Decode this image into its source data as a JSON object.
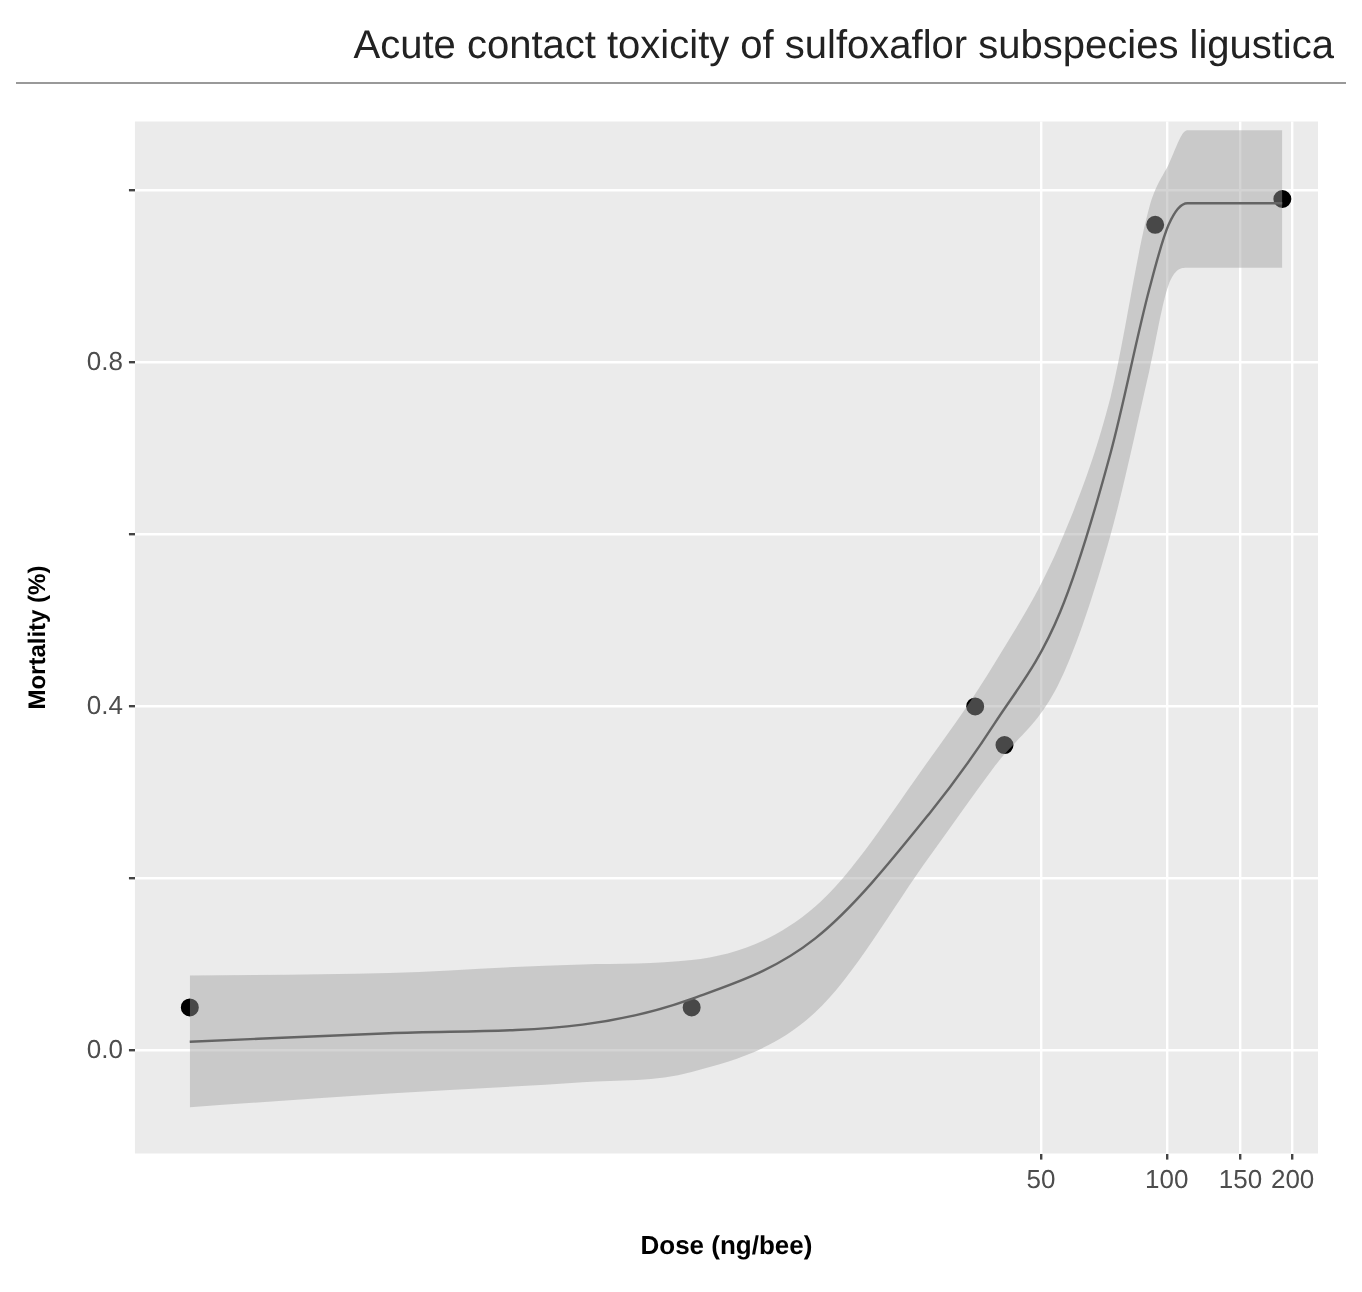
{
  "chart_data": {
    "type": "scatter",
    "title": "Acute contact toxicity of sulfoxaflor subspecies ligustica",
    "xlabel": "Dose (ng/bee)",
    "ylabel": "Mortality (%)",
    "log": "x",
    "xlim": [
      0.34,
      230
    ],
    "xticks": [
      50,
      100,
      150,
      200
    ],
    "ylim": [
      -0.12,
      1.08
    ],
    "yticks": [
      {
        "value": 0,
        "label": "0.0"
      },
      {
        "value": 0.2,
        "label": null
      },
      0.4,
      {
        "value": 0.6,
        "label": null
      },
      0.8,
      {
        "value": 1.0,
        "label": null
      }
    ],
    "grid": true,
    "series": [
      {
        "type": "line",
        "color": "#333333",
        "x": [
          0.46,
          1.38,
          4.0,
          7.3,
          14.4,
          27.2,
          38.7,
          55.6,
          73.4,
          90.8,
          101,
          112,
          189
        ],
        "values": [
          0.01,
          0.02,
          0.03,
          0.06,
          0.13,
          0.277,
          0.38,
          0.51,
          0.695,
          0.885,
          0.96,
          0.985,
          0.985
        ],
        "lower": [
          -0.066,
          -0.05,
          -0.037,
          -0.025,
          0.044,
          0.227,
          0.33,
          0.43,
          0.6,
          0.79,
          0.89,
          0.91,
          0.91
        ],
        "upper": [
          0.087,
          0.09,
          0.1,
          0.105,
          0.167,
          0.34,
          0.45,
          0.59,
          0.76,
          0.98,
          1.03,
          1.07,
          1.07
        ]
      },
      {
        "marker": "circle",
        "color": "#000000",
        "x": [
          0.46,
          7.3,
          34.8,
          40.9,
          93.8,
          189
        ],
        "values": [
          0.05,
          0.05,
          0.4,
          0.355,
          0.96,
          0.99
        ]
      }
    ]
  }
}
